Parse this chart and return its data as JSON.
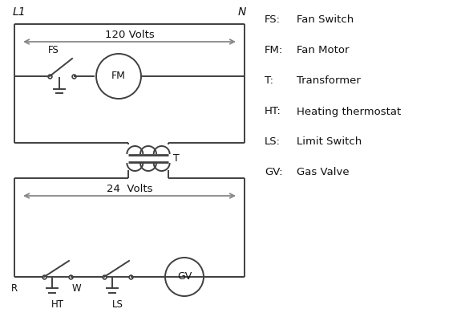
{
  "bg_color": "#ffffff",
  "line_color": "#404040",
  "text_color": "#111111",
  "arrow_color": "#888888",
  "legend": {
    "FS": "Fan Switch",
    "FM": "Fan Motor",
    "T": "Transformer",
    "HT": "Heating thermostat",
    "LS": "Limit Switch",
    "GV": "Gas Valve"
  },
  "fig_w": 5.9,
  "fig_h": 4.0,
  "dpi": 100
}
